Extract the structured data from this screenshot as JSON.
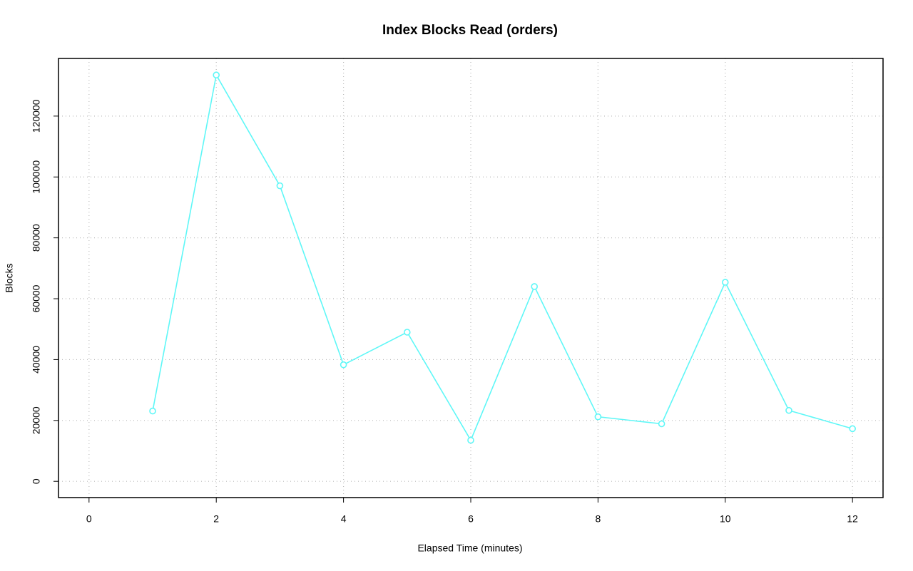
{
  "chart_data": {
    "type": "line",
    "title": "Index Blocks Read (orders)",
    "x_label": "Elapsed Time (minutes)",
    "y_label": "Blocks",
    "x": [
      1,
      2,
      3,
      4,
      5,
      6,
      7,
      8,
      9,
      10,
      11,
      12
    ],
    "series": [
      {
        "name": "orders",
        "color": "#5ff7f7",
        "values": [
          23100,
          133500,
          97100,
          38300,
          49000,
          13500,
          64000,
          21200,
          18900,
          65400,
          23300,
          17300
        ]
      }
    ],
    "xlim": [
      -0.48,
      12.48
    ],
    "xticks": [
      0,
      2,
      4,
      6,
      8,
      10,
      12
    ],
    "ylim": [
      -5340,
      138940
    ],
    "yticks": [
      0,
      20000,
      40000,
      60000,
      80000,
      100000,
      120000
    ],
    "grid": true
  }
}
